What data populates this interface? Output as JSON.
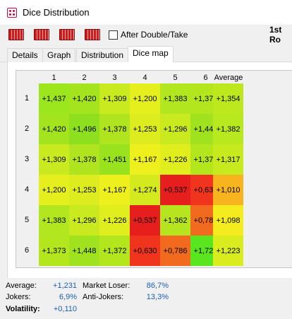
{
  "window": {
    "title": "Dice Distribution"
  },
  "toolbar": {
    "checkbox_label": "After Double/Take",
    "round_label": "1st Ro"
  },
  "tabs": [
    {
      "label": "Details"
    },
    {
      "label": "Graph"
    },
    {
      "label": "Distribution"
    },
    {
      "label": "Dice map"
    }
  ],
  "active_tab": "Dice map",
  "dice_map": {
    "col_headers": [
      "1",
      "2",
      "3",
      "4",
      "5",
      "6"
    ],
    "average_header": "Average",
    "rows": [
      {
        "label": "1",
        "cells": [
          "+1,437",
          "+1,420",
          "+1,309",
          "+1,200",
          "+1,383",
          "+1,373"
        ],
        "average": "+1,354"
      },
      {
        "label": "2",
        "cells": [
          "+1,420",
          "+1,496",
          "+1,378",
          "+1,253",
          "+1,296",
          "+1,448"
        ],
        "average": "+1,382"
      },
      {
        "label": "3",
        "cells": [
          "+1,309",
          "+1,378",
          "+1,451",
          "+1,167",
          "+1,226",
          "+1,372"
        ],
        "average": "+1,317"
      },
      {
        "label": "4",
        "cells": [
          "+1,200",
          "+1,253",
          "+1,167",
          "+1,274",
          "+0,537",
          "+0,630"
        ],
        "average": "+1,010"
      },
      {
        "label": "5",
        "cells": [
          "+1,383",
          "+1,296",
          "+1,226",
          "+0,537",
          "+1,362",
          "+0,786"
        ],
        "average": "+1,098"
      },
      {
        "label": "6",
        "cells": [
          "+1,373",
          "+1,448",
          "+1,372",
          "+0,630",
          "+0,786",
          "+1,726"
        ],
        "average": "+1,223"
      }
    ],
    "cell_colors": [
      [
        "#9ce61e",
        "#a3e41e",
        "#c8ea1e",
        "#e6ef1e",
        "#b2e61e",
        "#b4e61e"
      ],
      [
        "#a3e41e",
        "#8ee01e",
        "#b0e41e",
        "#dcec1e",
        "#c8ea1e",
        "#a0e21e"
      ],
      [
        "#c8ea1e",
        "#b0e41e",
        "#98e21e",
        "#eef01e",
        "#e0ee1e",
        "#b4e61e"
      ],
      [
        "#e6ef1e",
        "#dcec1e",
        "#eef01e",
        "#d4ea1e",
        "#e61e1e",
        "#f0341e"
      ],
      [
        "#b2e61e",
        "#c8ea1e",
        "#e0ee1e",
        "#e61e1e",
        "#b6e41e",
        "#f26a1e"
      ],
      [
        "#b4e61e",
        "#a0e21e",
        "#b4e61e",
        "#f0341e",
        "#f26a1e",
        "#5ae61e"
      ]
    ],
    "average_colors": [
      "#bee81e",
      "#b8e81e",
      "#c6ea1e",
      "#f8b41e",
      "#f4ec1e",
      "#d8ec1e"
    ]
  },
  "stats": {
    "average_label": "Average:",
    "average_value": "+1,231",
    "market_loser_label": "Market Loser:",
    "market_loser_value": "86,7%",
    "jokers_label": "Jokers:",
    "jokers_value": "6,9%",
    "anti_jokers_label": "Anti-Jokers:",
    "anti_jokers_value": "13,3%",
    "volatility_label": "Volatility:",
    "volatility_value": "+0,110"
  }
}
